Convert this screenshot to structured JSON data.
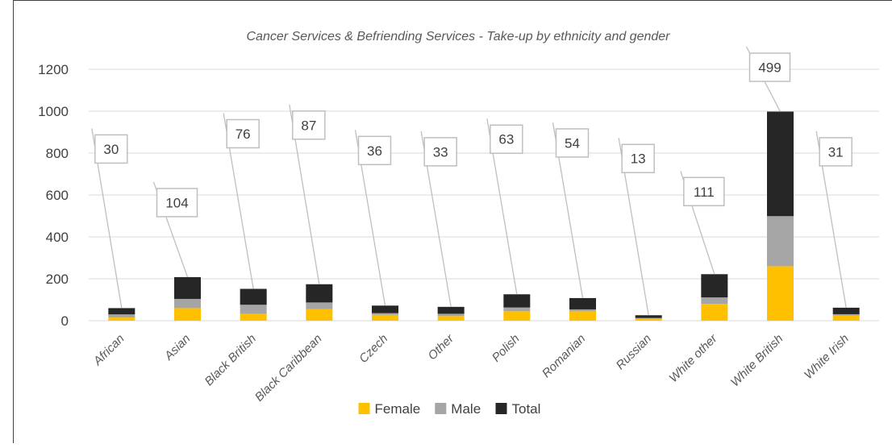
{
  "chart_data": {
    "type": "bar",
    "stacked": true,
    "title": "Cancer Services & Befriending Services - Take-up by ethnicity and gender",
    "categories": [
      "African",
      "Asian",
      "Black British",
      "Black Caribbean",
      "Czech",
      "Other",
      "Polish",
      "Romanian",
      "Russian",
      "White other",
      "White British",
      "White Irish"
    ],
    "series": [
      {
        "name": "Female",
        "color": "#ffc000",
        "values": [
          15,
          60,
          33,
          55,
          28,
          22,
          45,
          45,
          10,
          80,
          260,
          25
        ]
      },
      {
        "name": "Male",
        "color": "#a5a5a5",
        "values": [
          15,
          44,
          43,
          32,
          8,
          11,
          18,
          9,
          3,
          31,
          239,
          6
        ]
      },
      {
        "name": "Total",
        "color": "#262626",
        "values": [
          30,
          104,
          76,
          87,
          36,
          33,
          63,
          54,
          13,
          111,
          499,
          31
        ]
      }
    ],
    "data_labels": [
      "30",
      "104",
      "76",
      "87",
      "36",
      "33",
      "63",
      "54",
      "13",
      "111",
      "499",
      "31"
    ],
    "ylim": [
      0,
      1200
    ],
    "yticks": [
      "0",
      "200",
      "400",
      "600",
      "800",
      "1000",
      "1200"
    ],
    "xlabel": "",
    "ylabel": "",
    "grid": true,
    "legend_position": "bottom"
  }
}
